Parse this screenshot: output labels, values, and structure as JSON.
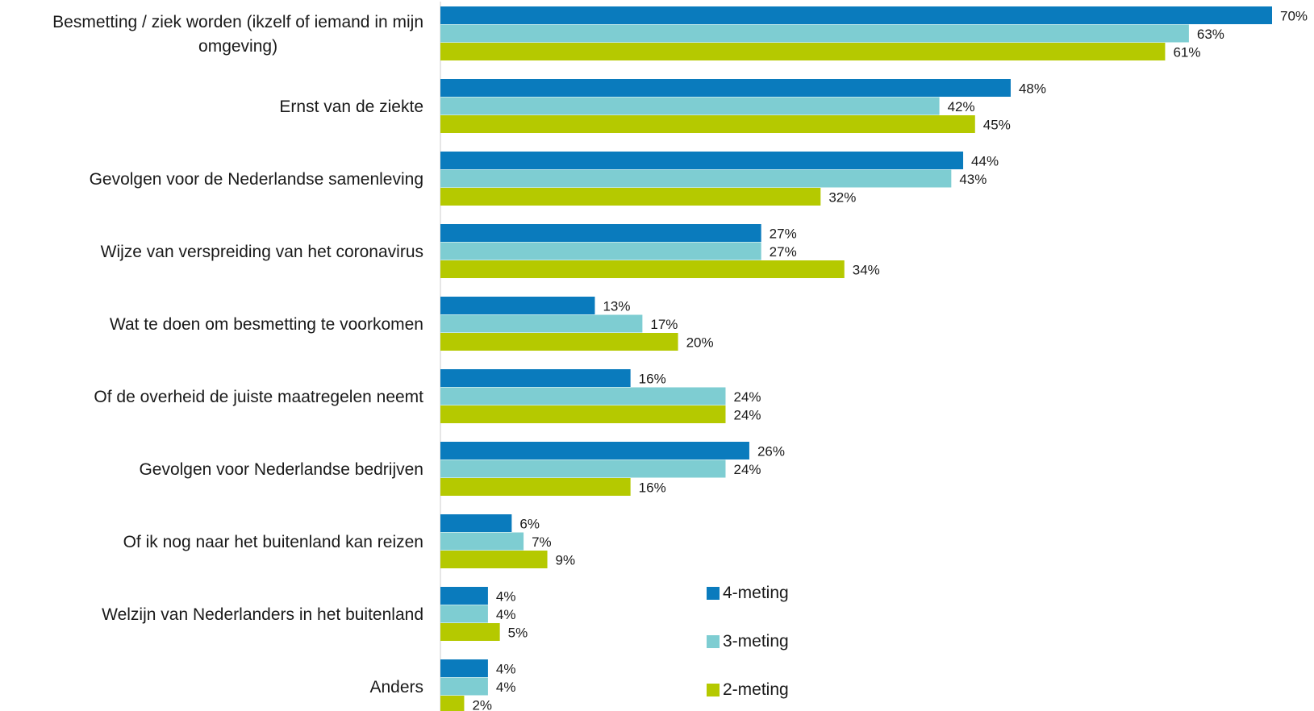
{
  "chart_data": {
    "type": "bar",
    "orientation": "horizontal",
    "categories": [
      [
        "Besmetting /  ziek worden (ikzelf of iemand in mijn",
        "omgeving)"
      ],
      [
        "Ernst van de ziekte"
      ],
      [
        "Gevolgen voor de Nederlandse samenleving"
      ],
      [
        "Wijze van verspreiding van het coronavirus"
      ],
      [
        "Wat te doen om besmetting te voorkomen"
      ],
      [
        "Of de overheid de juiste maatregelen neemt"
      ],
      [
        "Gevolgen voor Nederlandse bedrijven"
      ],
      [
        "Of ik nog naar het buitenland kan reizen"
      ],
      [
        "Welzijn van Nederlanders in het buitenland"
      ],
      [
        "Anders"
      ]
    ],
    "series": [
      {
        "name": "4-meting",
        "color": "#0a7bbd",
        "values": [
          70,
          48,
          44,
          27,
          13,
          16,
          26,
          6,
          4,
          4
        ],
        "labels": [
          "70%",
          "48%",
          "44%",
          "27%",
          "13%",
          "16%",
          "26%",
          "6%",
          "4%",
          "4%"
        ]
      },
      {
        "name": "3-meting",
        "color": "#7ecdd2",
        "values": [
          63,
          42,
          43,
          27,
          17,
          24,
          24,
          7,
          4,
          4
        ],
        "labels": [
          "63%",
          "42%",
          "43%",
          "27%",
          "17%",
          "24%",
          "24%",
          "7%",
          "4%",
          "4%"
        ]
      },
      {
        "name": "2-meting",
        "color": "#b5c900",
        "values": [
          61,
          45,
          32,
          34,
          20,
          24,
          16,
          9,
          5,
          2
        ],
        "labels": [
          "61%",
          "45%",
          "32%",
          "34%",
          "20%",
          "24%",
          "16%",
          "9%",
          "5%",
          "2%"
        ]
      }
    ],
    "xlim": [
      0,
      70
    ],
    "grid": false,
    "legend": "bottom-center"
  }
}
